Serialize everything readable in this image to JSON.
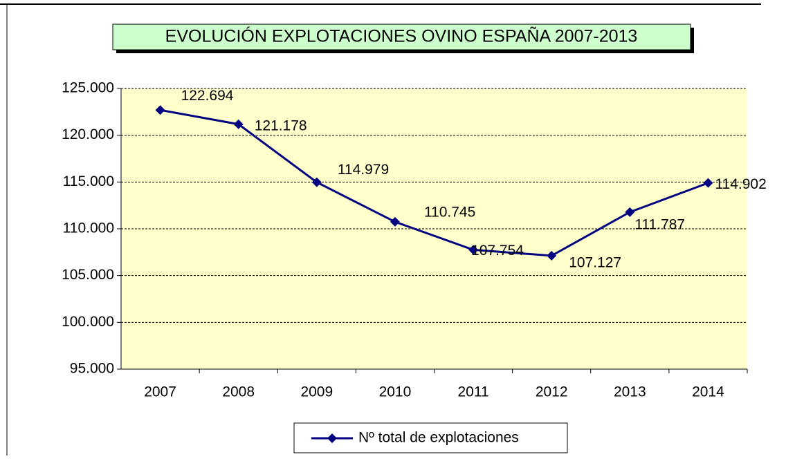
{
  "chart_data": {
    "type": "line",
    "title": "EVOLUCIÓN EXPLOTACIONES OVINO ESPAÑA 2007-2013",
    "categories": [
      "2007",
      "2008",
      "2009",
      "2010",
      "2011",
      "2012",
      "2013",
      "2014"
    ],
    "series": [
      {
        "name": "Nº total de explotaciones",
        "color": "#000080",
        "values": [
          122694,
          121178,
          114979,
          110745,
          107754,
          107127,
          111787,
          114902
        ],
        "value_labels": [
          "122.694",
          "121.178",
          "114.979",
          "110.745",
          "107.754",
          "107.127",
          "111.787",
          "114.902"
        ]
      }
    ],
    "ylim": [
      95000,
      125000
    ],
    "yticks": [
      {
        "value": 95000,
        "label": "95.000"
      },
      {
        "value": 100000,
        "label": "100.000"
      },
      {
        "value": 105000,
        "label": "105.000"
      },
      {
        "value": 110000,
        "label": "110.000"
      },
      {
        "value": 115000,
        "label": "115.000"
      },
      {
        "value": 120000,
        "label": "120.000"
      },
      {
        "value": 125000,
        "label": "125.000"
      }
    ],
    "grid": true,
    "legend": "bottom"
  }
}
